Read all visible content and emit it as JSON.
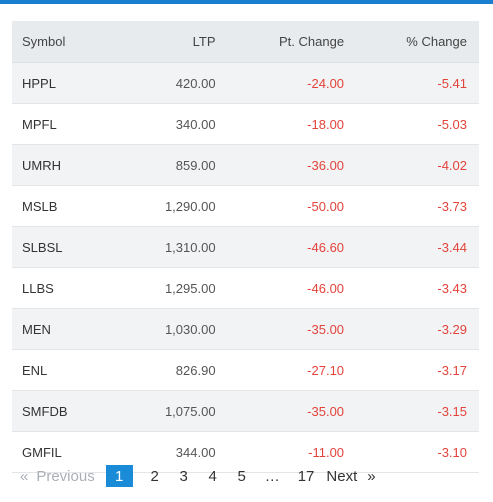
{
  "table": {
    "headers": {
      "symbol": "Symbol",
      "ltp": "LTP",
      "pt_change": "Pt. Change",
      "pct_change": "% Change"
    },
    "rows": [
      {
        "symbol": "HPPL",
        "ltp": "420.00",
        "pt_change": "-24.00",
        "pct_change": "-5.41"
      },
      {
        "symbol": "MPFL",
        "ltp": "340.00",
        "pt_change": "-18.00",
        "pct_change": "-5.03"
      },
      {
        "symbol": "UMRH",
        "ltp": "859.00",
        "pt_change": "-36.00",
        "pct_change": "-4.02"
      },
      {
        "symbol": "MSLB",
        "ltp": "1,290.00",
        "pt_change": "-50.00",
        "pct_change": "-3.73"
      },
      {
        "symbol": "SLBSL",
        "ltp": "1,310.00",
        "pt_change": "-46.60",
        "pct_change": "-3.44"
      },
      {
        "symbol": "LLBS",
        "ltp": "1,295.00",
        "pt_change": "-46.00",
        "pct_change": "-3.43"
      },
      {
        "symbol": "MEN",
        "ltp": "1,030.00",
        "pt_change": "-35.00",
        "pct_change": "-3.29"
      },
      {
        "symbol": "ENL",
        "ltp": "826.90",
        "pt_change": "-27.10",
        "pct_change": "-3.17"
      },
      {
        "symbol": "SMFDB",
        "ltp": "1,075.00",
        "pt_change": "-35.00",
        "pct_change": "-3.15"
      },
      {
        "symbol": "GMFIL",
        "ltp": "344.00",
        "pt_change": "-11.00",
        "pct_change": "-3.10"
      }
    ]
  },
  "pagination": {
    "prev_arrow": "«",
    "previous": "Previous",
    "pages": [
      "1",
      "2",
      "3",
      "4",
      "5"
    ],
    "active_page": "1",
    "ellipsis": "…",
    "last_page": "17",
    "next": "Next",
    "next_arrow": "»"
  },
  "colors": {
    "accent": "#1a7fd1",
    "negative": "#e2433b",
    "header_bg": "#e8ebee",
    "stripe_bg": "#f2f3f5"
  }
}
